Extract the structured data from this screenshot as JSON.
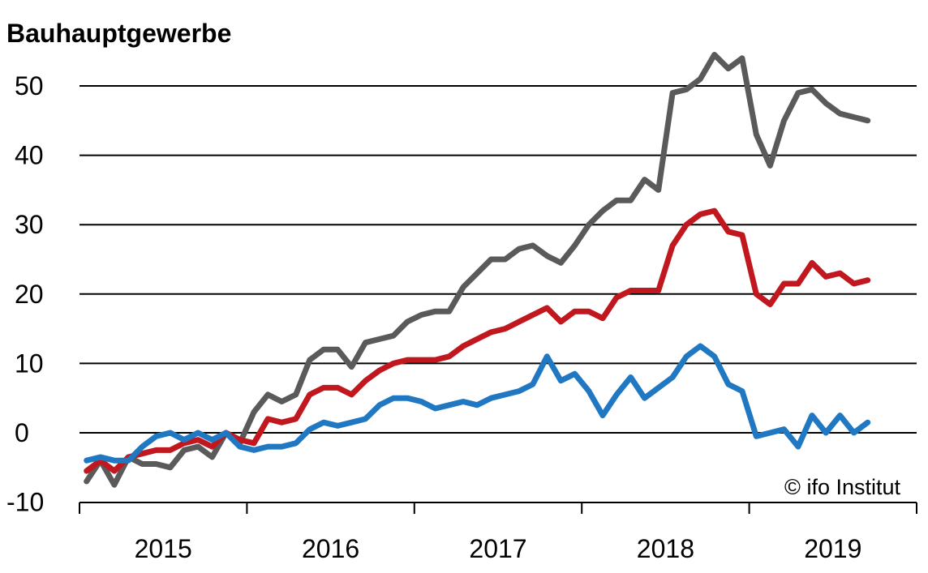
{
  "chart_data": {
    "type": "line",
    "title": "Bauhauptgewerbe",
    "source": "© ifo Institut",
    "ylim": [
      -10,
      55
    ],
    "yticks": [
      -10,
      0,
      10,
      20,
      30,
      40,
      50
    ],
    "xlim": [
      2015,
      2020
    ],
    "x_tick_labels": [
      "2015",
      "2016",
      "2017",
      "2018",
      "2019"
    ],
    "grid": "horizontal",
    "legend": "none",
    "series": [
      {
        "color": "#5a5a5a",
        "x": [
          2015.042,
          2015.125,
          2015.208,
          2015.292,
          2015.375,
          2015.458,
          2015.542,
          2015.625,
          2015.708,
          2015.792,
          2015.875,
          2015.958,
          2016.042,
          2016.125,
          2016.208,
          2016.292,
          2016.375,
          2016.458,
          2016.542,
          2016.625,
          2016.708,
          2016.792,
          2016.875,
          2016.958,
          2017.042,
          2017.125,
          2017.208,
          2017.292,
          2017.375,
          2017.458,
          2017.542,
          2017.625,
          2017.708,
          2017.792,
          2017.875,
          2017.958,
          2018.042,
          2018.125,
          2018.208,
          2018.292,
          2018.375,
          2018.458,
          2018.542,
          2018.625,
          2018.708,
          2018.792,
          2018.875,
          2018.958,
          2019.042,
          2019.125,
          2019.208,
          2019.292,
          2019.375,
          2019.458,
          2019.542,
          2019.625,
          2019.708
        ],
        "y": [
          -7,
          -4,
          -7.5,
          -3.5,
          -4.5,
          -4.5,
          -5,
          -2.5,
          -2,
          -3.5,
          0,
          -1.5,
          3,
          5.5,
          4.5,
          5.5,
          10.5,
          12,
          12,
          9.5,
          13,
          13.5,
          14,
          16,
          17,
          17.5,
          17.5,
          21,
          23,
          25,
          25,
          26.5,
          27,
          25.5,
          24.5,
          27,
          30,
          32,
          33.5,
          33.5,
          36.5,
          35,
          49,
          49.5,
          51,
          54.5,
          52.5,
          54,
          43,
          38.5,
          45,
          49,
          49.5,
          47.5,
          46,
          45.5,
          45
        ]
      },
      {
        "color": "#c0181e",
        "x": [
          2015.042,
          2015.125,
          2015.208,
          2015.292,
          2015.375,
          2015.458,
          2015.542,
          2015.625,
          2015.708,
          2015.792,
          2015.875,
          2015.958,
          2016.042,
          2016.125,
          2016.208,
          2016.292,
          2016.375,
          2016.458,
          2016.542,
          2016.625,
          2016.708,
          2016.792,
          2016.875,
          2016.958,
          2017.042,
          2017.125,
          2017.208,
          2017.292,
          2017.375,
          2017.458,
          2017.542,
          2017.625,
          2017.708,
          2017.792,
          2017.875,
          2017.958,
          2018.042,
          2018.125,
          2018.208,
          2018.292,
          2018.375,
          2018.458,
          2018.542,
          2018.625,
          2018.708,
          2018.792,
          2018.875,
          2018.958,
          2019.042,
          2019.125,
          2019.208,
          2019.292,
          2019.375,
          2019.458,
          2019.542,
          2019.625,
          2019.708
        ],
        "y": [
          -5.5,
          -4,
          -5.5,
          -3.5,
          -3,
          -2.5,
          -2.5,
          -1.5,
          -1,
          -2,
          0,
          -1,
          -1.5,
          2,
          1.5,
          2,
          5.5,
          6.5,
          6.5,
          5.5,
          7.5,
          9,
          10,
          10.5,
          10.5,
          10.5,
          11,
          12.5,
          13.5,
          14.5,
          15,
          16,
          17,
          18,
          16,
          17.5,
          17.5,
          16.5,
          19.5,
          20.5,
          20.5,
          20.5,
          27,
          30,
          31.5,
          32,
          29,
          28.5,
          20,
          18.5,
          21.5,
          21.5,
          24.5,
          22.5,
          23,
          21.5,
          22
        ]
      },
      {
        "color": "#1f78c1",
        "x": [
          2015.042,
          2015.125,
          2015.208,
          2015.292,
          2015.375,
          2015.458,
          2015.542,
          2015.625,
          2015.708,
          2015.792,
          2015.875,
          2015.958,
          2016.042,
          2016.125,
          2016.208,
          2016.292,
          2016.375,
          2016.458,
          2016.542,
          2016.625,
          2016.708,
          2016.792,
          2016.875,
          2016.958,
          2017.042,
          2017.125,
          2017.208,
          2017.292,
          2017.375,
          2017.458,
          2017.542,
          2017.625,
          2017.708,
          2017.792,
          2017.875,
          2017.958,
          2018.042,
          2018.125,
          2018.208,
          2018.292,
          2018.375,
          2018.458,
          2018.542,
          2018.625,
          2018.708,
          2018.792,
          2018.875,
          2018.958,
          2019.042,
          2019.125,
          2019.208,
          2019.292,
          2019.375,
          2019.458,
          2019.542,
          2019.625,
          2019.708
        ],
        "y": [
          -4,
          -3.5,
          -4,
          -4,
          -2,
          -0.5,
          0,
          -1,
          0,
          -1,
          0,
          -2,
          -2.5,
          -2,
          -2,
          -1.5,
          0.5,
          1.5,
          1,
          1.5,
          2,
          4,
          5,
          5,
          4.5,
          3.5,
          4,
          4.5,
          4,
          5,
          5.5,
          6,
          7,
          11,
          7.5,
          8.5,
          6,
          2.5,
          5.5,
          8,
          5,
          6.5,
          8,
          11,
          12.5,
          11,
          7,
          6,
          -0.5,
          0,
          0.5,
          -2,
          2.5,
          0,
          2.5,
          0,
          1.5
        ]
      }
    ]
  }
}
